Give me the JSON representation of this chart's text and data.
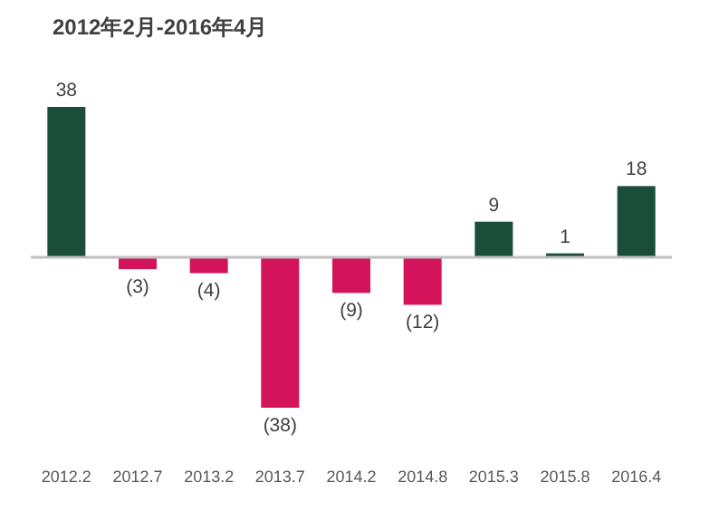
{
  "chart_data": {
    "type": "bar",
    "title": "2012年2月-2016年4月",
    "categories": [
      "2012.2",
      "2012.7",
      "2013.2",
      "2013.7",
      "2014.2",
      "2014.8",
      "2015.3",
      "2015.8",
      "2016.4"
    ],
    "values": [
      38,
      -3,
      -4,
      -38,
      -9,
      -12,
      9,
      1,
      18
    ],
    "colors": [
      "#1b4d3b",
      "#d4145a",
      "#d4145a",
      "#d4145a",
      "#d4145a",
      "#d4145a",
      "#1b4d3b",
      "#1b4d3b",
      "#1b4d3b"
    ],
    "value_labels": [
      "38",
      "(3)",
      "(4)",
      "(38)",
      "(9)",
      "(12)",
      "9",
      "1",
      "18"
    ]
  }
}
